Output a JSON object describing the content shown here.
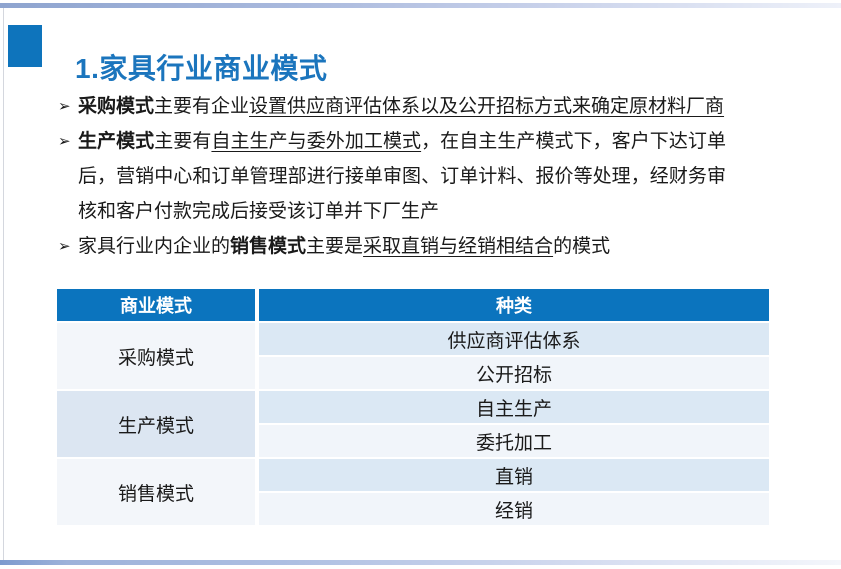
{
  "title": "1.家具行业商业模式",
  "bullet_marker": "➢",
  "bullets": [
    {
      "segments": [
        {
          "t": "采购模式"
        },
        {
          "t": "主要有企业"
        },
        {
          "t": "设置供应商评估体系以及公开招标方式来确定原材料厂商"
        }
      ]
    },
    {
      "segments": [
        {
          "t": "生产模式"
        },
        {
          "t": "主要有"
        },
        {
          "t": "自主生产与委外加工模式"
        },
        {
          "t": "，在自主生产模式下，客户下达订单后，营销中心和订单管理部进行接单审图、订单计料、报价等处理，经财务审核和客户付款完成后接受该订单并下厂生产"
        }
      ]
    },
    {
      "segments": [
        {
          "t": "家具行业内企业的"
        },
        {
          "t": "销售模式"
        },
        {
          "t": "主要是"
        },
        {
          "t": "采取直销与经销相结合"
        },
        {
          "t": "的模式"
        }
      ]
    }
  ],
  "table": {
    "headers": [
      "商业模式",
      "种类"
    ],
    "groups": [
      {
        "mode": "采购模式",
        "kinds": [
          "供应商评估体系",
          "公开招标"
        ]
      },
      {
        "mode": "生产模式",
        "kinds": [
          "自主生产",
          "委托加工"
        ]
      },
      {
        "mode": "销售模式",
        "kinds": [
          "直销",
          "经销"
        ]
      }
    ]
  },
  "colors": {
    "accent_blue": "#0b74be",
    "title_blue": "#1b75bd",
    "row_blue": "#dbe8f4",
    "row_light": "#f1f5fa",
    "group_blue": "#dce6f2",
    "text": "#1a1a1a"
  }
}
